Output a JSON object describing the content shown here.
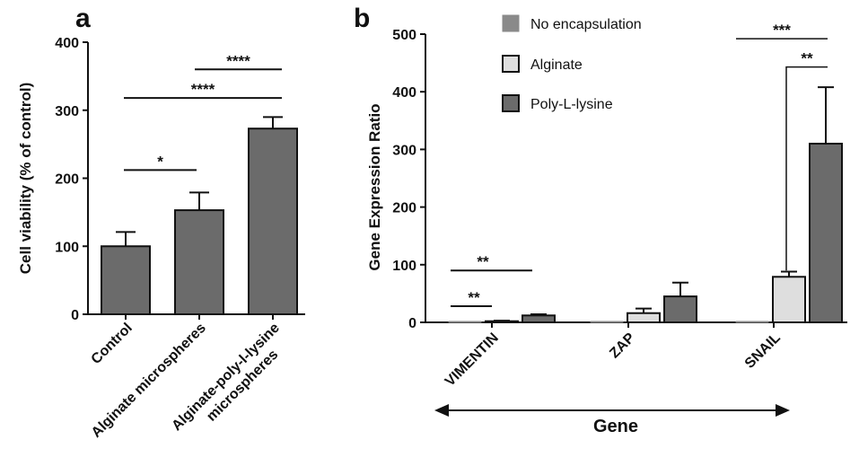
{
  "colors": {
    "axis": "#111111",
    "bar_a": "#6b6b6b",
    "no_encapsulation": "#8a8a8a",
    "alginate": "#dedede",
    "poly_l_lysine": "#6b6b6b"
  },
  "chart_data": [
    {
      "panel": "a",
      "type": "bar",
      "ylabel": "Cell viability (% of control)",
      "ylim": [
        0,
        400
      ],
      "yticks": [
        0,
        100,
        200,
        300,
        400
      ],
      "categories": [
        [
          "Control"
        ],
        [
          "Alginate microspheres"
        ],
        [
          "Alginate-poly-l-lysine",
          "microspheres"
        ]
      ],
      "values": [
        100,
        153,
        273
      ],
      "errors": [
        21,
        26,
        17
      ],
      "significance": [
        {
          "from": 0,
          "to": 1,
          "label": "*",
          "y": 212
        },
        {
          "from": 0,
          "to": 2,
          "label": "****",
          "y": 318
        },
        {
          "from": 1,
          "to": 2,
          "label": "****",
          "y": 360
        }
      ]
    },
    {
      "panel": "b",
      "type": "bar",
      "ylabel": "Gene Expression Ratio",
      "xlabel": "Gene",
      "ylim": [
        0,
        500
      ],
      "yticks": [
        0,
        100,
        200,
        300,
        400,
        500
      ],
      "categories": [
        "VIMENTIN",
        "ZAP",
        "SNAIL"
      ],
      "series": [
        {
          "name": "No encapsulation",
          "color_key": "no_encapsulation",
          "values": [
            1,
            1,
            1
          ],
          "errors": [
            0,
            0,
            0
          ]
        },
        {
          "name": "Alginate",
          "color_key": "alginate",
          "values": [
            2,
            16,
            79
          ],
          "errors": [
            1,
            8,
            9
          ]
        },
        {
          "name": "Poly-L-lysine",
          "color_key": "poly_l_lysine",
          "values": [
            12,
            45,
            310
          ],
          "errors": [
            2,
            24,
            98
          ]
        }
      ],
      "significance": [
        {
          "label": "**",
          "category": 0,
          "from_series": 0,
          "to_series": 1,
          "y": 28
        },
        {
          "label": "**",
          "category": 0,
          "from_series": 0,
          "to_series": 2,
          "y": 90
        },
        {
          "label": "***",
          "category": 2,
          "from_series": 0,
          "to_series": 2,
          "y": 492
        },
        {
          "label": "**",
          "category": 2,
          "from_series": 1,
          "to_series": 2,
          "y": 443
        }
      ]
    }
  ]
}
